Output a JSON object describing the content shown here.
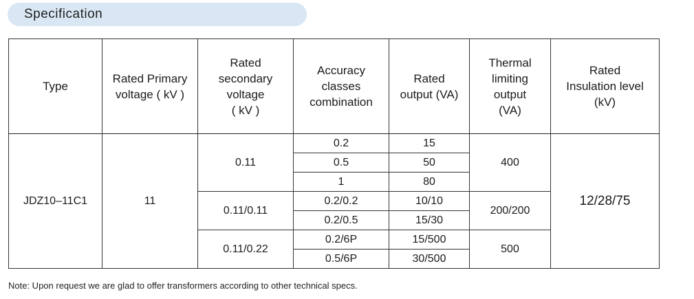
{
  "header": {
    "title": "Specification"
  },
  "table": {
    "headers": [
      [
        "Type"
      ],
      [
        "Rated Primary",
        "voltage ( kV )"
      ],
      [
        "Rated",
        "secondary",
        "voltage",
        "( kV )"
      ],
      [
        "Accuracy",
        "classes",
        "combination"
      ],
      [
        "Rated",
        "output (VA)"
      ],
      [
        "Thermal",
        "limiting",
        "output",
        "(VA)"
      ],
      [
        "Rated",
        "Insulation level",
        "(kV)"
      ]
    ],
    "type": "JDZ10–11C1",
    "primary_voltage": "11",
    "insulation_level": "12/28/75",
    "groups": [
      {
        "secondary_voltage": "0.11",
        "thermal_output": "400",
        "rows": [
          {
            "accuracy": "0.2",
            "output": "15"
          },
          {
            "accuracy": "0.5",
            "output": "50"
          },
          {
            "accuracy": "1",
            "output": "80"
          }
        ]
      },
      {
        "secondary_voltage": "0.11/0.11",
        "thermal_output": "200/200",
        "rows": [
          {
            "accuracy": "0.2/0.2",
            "output": "10/10"
          },
          {
            "accuracy": "0.2/0.5",
            "output": "15/30"
          }
        ]
      },
      {
        "secondary_voltage": "0.11/0.22",
        "thermal_output": "500",
        "rows": [
          {
            "accuracy": "0.2/6P",
            "output": "15/500"
          },
          {
            "accuracy": "0.5/6P",
            "output": "30/500"
          }
        ]
      }
    ]
  },
  "note": "Note: Upon request we are glad to offer transformers according to other technical specs."
}
